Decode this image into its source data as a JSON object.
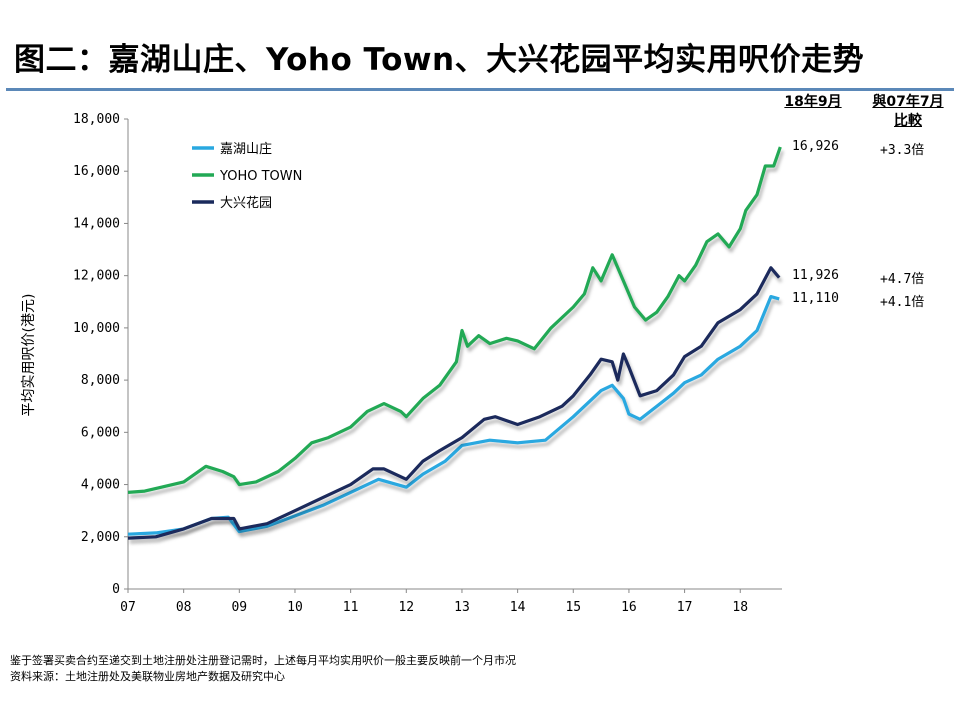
{
  "title": "图二：嘉湖山庄、Yoho Town、大兴花园平均实用呎价走势",
  "header_period": "18年9月",
  "header_compare_line1": "與07年7月",
  "header_compare_line2": "比較",
  "footer_note": "鉴于签署买卖合约至递交到土地注册处注册登记需时，上述每月平均实用呎价一般主要反映前一个月市况",
  "footer_source": "资料来源：土地注册处及美联物业房地产数据及研究中心",
  "colors": {
    "series1": "#29a8e0",
    "series2": "#22a955",
    "series3": "#1a2a5c",
    "rule": "#5b88b8"
  },
  "chart_data": {
    "type": "line",
    "title": "",
    "xlabel": "",
    "ylabel": "平均实用呎价(港元)",
    "ylim": [
      0,
      18000
    ],
    "xlim": [
      2007.0,
      2018.75
    ],
    "yticks": [
      0,
      2000,
      4000,
      6000,
      8000,
      10000,
      12000,
      14000,
      16000,
      18000
    ],
    "ytick_labels": [
      "0",
      "2,000",
      "4,000",
      "6,000",
      "8,000",
      "10,000",
      "12,000",
      "14,000",
      "16,000",
      "18,000"
    ],
    "xticks": [
      2007,
      2008,
      2009,
      2010,
      2011,
      2012,
      2013,
      2014,
      2015,
      2016,
      2017,
      2018
    ],
    "xtick_labels": [
      "07",
      "08",
      "09",
      "10",
      "11",
      "12",
      "13",
      "14",
      "15",
      "16",
      "17",
      "18"
    ],
    "legend": "top-left",
    "series": [
      {
        "name": "嘉湖山庄",
        "points": [
          [
            2007.0,
            2100
          ],
          [
            2007.5,
            2150
          ],
          [
            2008.0,
            2300
          ],
          [
            2008.5,
            2700
          ],
          [
            2008.8,
            2750
          ],
          [
            2009.0,
            2200
          ],
          [
            2009.5,
            2400
          ],
          [
            2010.0,
            2800
          ],
          [
            2010.5,
            3200
          ],
          [
            2011.0,
            3700
          ],
          [
            2011.5,
            4200
          ],
          [
            2012.0,
            3900
          ],
          [
            2012.3,
            4400
          ],
          [
            2012.7,
            4900
          ],
          [
            2013.0,
            5500
          ],
          [
            2013.5,
            5700
          ],
          [
            2014.0,
            5600
          ],
          [
            2014.5,
            5700
          ],
          [
            2015.0,
            6600
          ],
          [
            2015.5,
            7600
          ],
          [
            2015.7,
            7800
          ],
          [
            2015.9,
            7300
          ],
          [
            2016.0,
            6700
          ],
          [
            2016.2,
            6500
          ],
          [
            2016.5,
            7000
          ],
          [
            2016.8,
            7500
          ],
          [
            2017.0,
            7900
          ],
          [
            2017.3,
            8200
          ],
          [
            2017.6,
            8800
          ],
          [
            2018.0,
            9300
          ],
          [
            2018.3,
            9900
          ],
          [
            2018.55,
            11200
          ],
          [
            2018.7,
            11110
          ]
        ],
        "end_value": "11,110",
        "multiple": "+4.1倍"
      },
      {
        "name": "YOHO TOWN",
        "points": [
          [
            2007.0,
            3700
          ],
          [
            2007.3,
            3750
          ],
          [
            2007.6,
            3900
          ],
          [
            2008.0,
            4100
          ],
          [
            2008.4,
            4700
          ],
          [
            2008.7,
            4500
          ],
          [
            2008.9,
            4300
          ],
          [
            2009.0,
            4000
          ],
          [
            2009.3,
            4100
          ],
          [
            2009.7,
            4500
          ],
          [
            2010.0,
            5000
          ],
          [
            2010.3,
            5600
          ],
          [
            2010.6,
            5800
          ],
          [
            2011.0,
            6200
          ],
          [
            2011.3,
            6800
          ],
          [
            2011.6,
            7100
          ],
          [
            2011.9,
            6800
          ],
          [
            2012.0,
            6600
          ],
          [
            2012.3,
            7300
          ],
          [
            2012.6,
            7800
          ],
          [
            2012.9,
            8700
          ],
          [
            2013.0,
            9900
          ],
          [
            2013.1,
            9300
          ],
          [
            2013.3,
            9700
          ],
          [
            2013.5,
            9400
          ],
          [
            2013.8,
            9600
          ],
          [
            2014.0,
            9500
          ],
          [
            2014.3,
            9200
          ],
          [
            2014.6,
            10000
          ],
          [
            2015.0,
            10800
          ],
          [
            2015.2,
            11300
          ],
          [
            2015.35,
            12300
          ],
          [
            2015.5,
            11800
          ],
          [
            2015.7,
            12800
          ],
          [
            2015.9,
            11800
          ],
          [
            2016.1,
            10800
          ],
          [
            2016.3,
            10300
          ],
          [
            2016.5,
            10600
          ],
          [
            2016.7,
            11200
          ],
          [
            2016.9,
            12000
          ],
          [
            2017.0,
            11800
          ],
          [
            2017.2,
            12400
          ],
          [
            2017.4,
            13300
          ],
          [
            2017.6,
            13600
          ],
          [
            2017.8,
            13100
          ],
          [
            2018.0,
            13800
          ],
          [
            2018.1,
            14500
          ],
          [
            2018.3,
            15100
          ],
          [
            2018.45,
            16200
          ],
          [
            2018.6,
            16200
          ],
          [
            2018.72,
            16926
          ]
        ],
        "end_value": "16,926",
        "multiple": "+3.3倍"
      },
      {
        "name": "大兴花园",
        "points": [
          [
            2007.0,
            1950
          ],
          [
            2007.5,
            2000
          ],
          [
            2008.0,
            2300
          ],
          [
            2008.5,
            2700
          ],
          [
            2008.9,
            2700
          ],
          [
            2009.0,
            2300
          ],
          [
            2009.5,
            2500
          ],
          [
            2010.0,
            3000
          ],
          [
            2010.5,
            3500
          ],
          [
            2011.0,
            4000
          ],
          [
            2011.4,
            4600
          ],
          [
            2011.6,
            4600
          ],
          [
            2012.0,
            4200
          ],
          [
            2012.3,
            4900
          ],
          [
            2012.6,
            5300
          ],
          [
            2013.0,
            5800
          ],
          [
            2013.4,
            6500
          ],
          [
            2013.6,
            6600
          ],
          [
            2014.0,
            6300
          ],
          [
            2014.4,
            6600
          ],
          [
            2014.8,
            7000
          ],
          [
            2015.0,
            7400
          ],
          [
            2015.3,
            8200
          ],
          [
            2015.5,
            8800
          ],
          [
            2015.7,
            8700
          ],
          [
            2015.8,
            8000
          ],
          [
            2015.9,
            9000
          ],
          [
            2016.0,
            8500
          ],
          [
            2016.2,
            7400
          ],
          [
            2016.5,
            7600
          ],
          [
            2016.8,
            8200
          ],
          [
            2017.0,
            8900
          ],
          [
            2017.3,
            9300
          ],
          [
            2017.6,
            10200
          ],
          [
            2018.0,
            10700
          ],
          [
            2018.3,
            11300
          ],
          [
            2018.55,
            12300
          ],
          [
            2018.7,
            11926
          ]
        ],
        "end_value": "11,926",
        "multiple": "+4.7倍"
      }
    ]
  }
}
